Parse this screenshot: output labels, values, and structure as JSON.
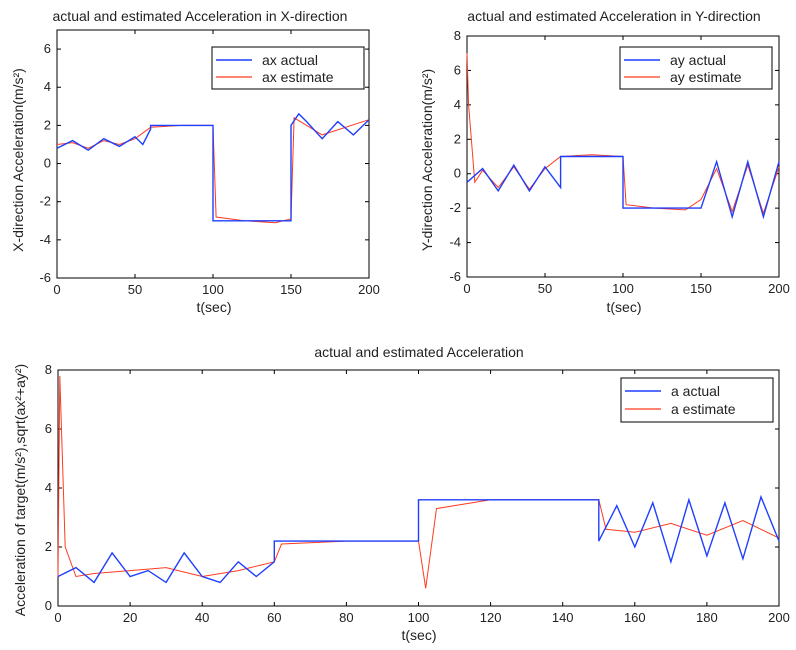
{
  "charts": [
    {
      "title": "actual and estimated Acceleration in X-direction",
      "xlabel": "t(sec)",
      "ylabel": "X-direction Acceleration(m/s²)",
      "xlim": [
        0,
        200
      ],
      "ylim": [
        -6,
        7
      ],
      "xticks": [
        0,
        50,
        100,
        150,
        200
      ],
      "yticks": [
        -6,
        -4,
        -2,
        0,
        2,
        4,
        6
      ],
      "legend": [
        "ax actual",
        "ax estimate"
      ]
    },
    {
      "title": "actual and estimated Acceleration in Y-direction",
      "xlabel": "t(sec)",
      "ylabel": "Y-direction Acceleration(m/s²)",
      "xlim": [
        0,
        200
      ],
      "ylim": [
        -6,
        8
      ],
      "xticks": [
        0,
        50,
        100,
        150,
        200
      ],
      "yticks": [
        -6,
        -4,
        -2,
        0,
        2,
        4,
        6,
        8
      ],
      "legend": [
        "ay actual",
        "ay estimate"
      ]
    },
    {
      "title": "actual and estimated Acceleration",
      "xlabel": "t(sec)",
      "ylabel": "Acceleration of target(m/s²),sqrt(ax²+ay²)",
      "xlim": [
        0,
        200
      ],
      "ylim": [
        0,
        8
      ],
      "xticks": [
        0,
        20,
        40,
        60,
        80,
        100,
        120,
        140,
        160,
        180,
        200
      ],
      "yticks": [
        0,
        2,
        4,
        6,
        8
      ],
      "legend": [
        "a actual",
        "a estimate"
      ]
    }
  ],
  "colors": {
    "actual": "#1f3fff",
    "estimate": "#ff3b1f"
  },
  "chart_data": [
    {
      "type": "line",
      "title": "actual and estimated Acceleration in X-direction",
      "xlabel": "t(sec)",
      "ylabel": "X-direction Acceleration(m/s²)",
      "xlim": [
        0,
        200
      ],
      "ylim": [
        -6,
        7
      ],
      "legend_position": "top-right",
      "series": [
        {
          "name": "ax actual",
          "x": [
            0,
            10,
            20,
            30,
            40,
            50,
            55,
            60,
            60,
            80,
            100,
            100,
            120,
            150,
            150,
            155,
            160,
            170,
            180,
            190,
            200
          ],
          "y": [
            0.8,
            1.2,
            0.7,
            1.3,
            0.9,
            1.4,
            1.0,
            1.8,
            2.0,
            2.0,
            2.0,
            -3.0,
            -3.0,
            -3.0,
            2.0,
            2.6,
            2.2,
            1.3,
            2.2,
            1.5,
            2.3
          ]
        },
        {
          "name": "ax estimate",
          "x": [
            0,
            10,
            20,
            30,
            40,
            50,
            60,
            80,
            100,
            102,
            120,
            140,
            150,
            152,
            170,
            200
          ],
          "y": [
            1.0,
            1.1,
            0.8,
            1.2,
            1.0,
            1.3,
            1.9,
            2.0,
            2.0,
            -2.8,
            -3.0,
            -3.1,
            -2.9,
            2.4,
            1.5,
            2.3
          ]
        }
      ]
    },
    {
      "type": "line",
      "title": "actual and estimated Acceleration in Y-direction",
      "xlabel": "t(sec)",
      "ylabel": "Y-direction Acceleration(m/s²)",
      "xlim": [
        0,
        200
      ],
      "ylim": [
        -6,
        8
      ],
      "legend_position": "top-right",
      "series": [
        {
          "name": "ay actual",
          "x": [
            0,
            10,
            20,
            30,
            40,
            50,
            60,
            60,
            80,
            100,
            100,
            120,
            140,
            150,
            160,
            170,
            180,
            190,
            200
          ],
          "y": [
            -0.5,
            0.3,
            -1.0,
            0.5,
            -1.0,
            0.4,
            -0.8,
            1.0,
            1.0,
            1.0,
            -2.0,
            -2.0,
            -2.0,
            -2.0,
            0.7,
            -2.5,
            0.7,
            -2.5,
            0.7
          ]
        },
        {
          "name": "ay estimate",
          "x": [
            0,
            1,
            5,
            10,
            20,
            30,
            40,
            50,
            60,
            80,
            100,
            102,
            120,
            140,
            150,
            160,
            170,
            180,
            190,
            200
          ],
          "y": [
            7.0,
            4.0,
            -0.5,
            0.2,
            -0.8,
            0.4,
            -0.9,
            0.3,
            1.0,
            1.1,
            1.0,
            -1.8,
            -2.0,
            -2.1,
            -1.5,
            0.3,
            -2.2,
            0.5,
            -2.3,
            0.4
          ]
        }
      ]
    },
    {
      "type": "line",
      "title": "actual and estimated Acceleration",
      "xlabel": "t(sec)",
      "ylabel": "Acceleration of target(m/s²),sqrt(ax²+ay²)",
      "xlim": [
        0,
        200
      ],
      "ylim": [
        0,
        8
      ],
      "legend_position": "top-right",
      "series": [
        {
          "name": "a actual",
          "x": [
            0,
            5,
            10,
            15,
            20,
            25,
            30,
            35,
            40,
            45,
            50,
            55,
            60,
            60,
            80,
            100,
            100,
            120,
            140,
            150,
            150,
            155,
            160,
            165,
            170,
            175,
            180,
            185,
            190,
            195,
            200
          ],
          "y": [
            1.0,
            1.3,
            0.8,
            1.8,
            1.0,
            1.2,
            0.8,
            1.8,
            1.0,
            0.8,
            1.5,
            1.0,
            1.5,
            2.2,
            2.2,
            2.2,
            3.6,
            3.6,
            3.6,
            3.6,
            2.2,
            3.4,
            2.0,
            3.5,
            1.5,
            3.6,
            1.7,
            3.5,
            1.6,
            3.7,
            2.2
          ]
        },
        {
          "name": "a estimate",
          "x": [
            0,
            0.5,
            2,
            5,
            10,
            20,
            30,
            40,
            50,
            60,
            62,
            80,
            100,
            102,
            105,
            120,
            140,
            150,
            152,
            160,
            170,
            180,
            190,
            200
          ],
          "y": [
            1.0,
            7.8,
            2.0,
            1.0,
            1.1,
            1.2,
            1.3,
            1.0,
            1.2,
            1.5,
            2.1,
            2.2,
            2.2,
            0.6,
            3.3,
            3.6,
            3.6,
            3.6,
            2.6,
            2.5,
            2.8,
            2.4,
            2.9,
            2.3
          ]
        }
      ]
    }
  ]
}
